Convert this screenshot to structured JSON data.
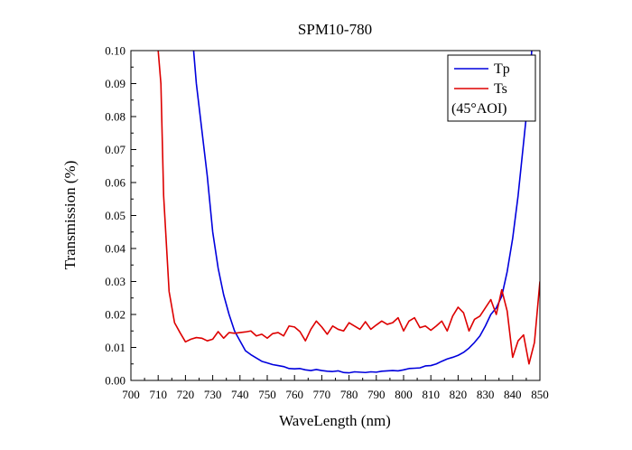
{
  "chart_data": {
    "type": "line",
    "title": "SPM10-780",
    "xlabel": "WaveLength (nm)",
    "ylabel": "Transmission (%)",
    "xlim": [
      700,
      850
    ],
    "ylim": [
      0,
      0.1
    ],
    "x_ticks": [
      "700",
      "710",
      "720",
      "730",
      "740",
      "750",
      "760",
      "770",
      "780",
      "790",
      "800",
      "810",
      "820",
      "830",
      "840",
      "850"
    ],
    "y_ticks": [
      "0.00",
      "0.01",
      "0.02",
      "0.03",
      "0.04",
      "0.05",
      "0.06",
      "0.07",
      "0.08",
      "0.09",
      "0.10"
    ],
    "grid": false,
    "legend_position": "top-right",
    "legend_note": "(45°AOI)",
    "series": [
      {
        "name": "Tp",
        "color": "#0000dd",
        "points": [
          [
            723,
            0.1
          ],
          [
            724,
            0.09
          ],
          [
            726,
            0.076
          ],
          [
            728,
            0.062
          ],
          [
            730,
            0.045
          ],
          [
            732,
            0.034
          ],
          [
            734,
            0.026
          ],
          [
            736,
            0.02
          ],
          [
            738,
            0.015
          ],
          [
            740,
            0.012
          ],
          [
            742,
            0.009
          ],
          [
            744,
            0.0078
          ],
          [
            746,
            0.0068
          ],
          [
            748,
            0.0058
          ],
          [
            750,
            0.0053
          ],
          [
            752,
            0.0048
          ],
          [
            754,
            0.0045
          ],
          [
            756,
            0.0042
          ],
          [
            758,
            0.0036
          ],
          [
            760,
            0.0035
          ],
          [
            762,
            0.0036
          ],
          [
            764,
            0.0032
          ],
          [
            766,
            0.003
          ],
          [
            768,
            0.0033
          ],
          [
            770,
            0.003
          ],
          [
            772,
            0.0028
          ],
          [
            774,
            0.0027
          ],
          [
            776,
            0.0029
          ],
          [
            778,
            0.0024
          ],
          [
            780,
            0.0023
          ],
          [
            782,
            0.0026
          ],
          [
            784,
            0.0025
          ],
          [
            786,
            0.0024
          ],
          [
            788,
            0.0026
          ],
          [
            790,
            0.0025
          ],
          [
            792,
            0.0028
          ],
          [
            794,
            0.0029
          ],
          [
            796,
            0.003
          ],
          [
            798,
            0.0029
          ],
          [
            800,
            0.0032
          ],
          [
            802,
            0.0036
          ],
          [
            804,
            0.0037
          ],
          [
            806,
            0.0038
          ],
          [
            808,
            0.0044
          ],
          [
            810,
            0.0045
          ],
          [
            812,
            0.005
          ],
          [
            814,
            0.0058
          ],
          [
            816,
            0.0065
          ],
          [
            818,
            0.007
          ],
          [
            820,
            0.0076
          ],
          [
            822,
            0.0085
          ],
          [
            824,
            0.0098
          ],
          [
            826,
            0.0115
          ],
          [
            828,
            0.0135
          ],
          [
            830,
            0.0165
          ],
          [
            832,
            0.02
          ],
          [
            834,
            0.022
          ],
          [
            836,
            0.0255
          ],
          [
            838,
            0.033
          ],
          [
            840,
            0.043
          ],
          [
            842,
            0.056
          ],
          [
            844,
            0.072
          ],
          [
            846,
            0.088
          ],
          [
            847,
            0.1
          ]
        ]
      },
      {
        "name": "Ts",
        "color": "#dd0000",
        "points": [
          [
            710,
            0.1
          ],
          [
            711,
            0.09
          ],
          [
            712,
            0.056
          ],
          [
            714,
            0.027
          ],
          [
            716,
            0.0175
          ],
          [
            718,
            0.0145
          ],
          [
            720,
            0.0117
          ],
          [
            722,
            0.0125
          ],
          [
            724,
            0.013
          ],
          [
            726,
            0.0128
          ],
          [
            728,
            0.012
          ],
          [
            730,
            0.0125
          ],
          [
            732,
            0.0148
          ],
          [
            734,
            0.0128
          ],
          [
            736,
            0.0145
          ],
          [
            738,
            0.0143
          ],
          [
            740,
            0.0145
          ],
          [
            742,
            0.0147
          ],
          [
            744,
            0.015
          ],
          [
            746,
            0.0135
          ],
          [
            748,
            0.014
          ],
          [
            750,
            0.0128
          ],
          [
            752,
            0.0142
          ],
          [
            754,
            0.0145
          ],
          [
            756,
            0.0135
          ],
          [
            758,
            0.0165
          ],
          [
            760,
            0.0162
          ],
          [
            762,
            0.0148
          ],
          [
            764,
            0.012
          ],
          [
            766,
            0.0155
          ],
          [
            768,
            0.018
          ],
          [
            770,
            0.0162
          ],
          [
            772,
            0.014
          ],
          [
            774,
            0.0165
          ],
          [
            776,
            0.0155
          ],
          [
            778,
            0.015
          ],
          [
            780,
            0.0175
          ],
          [
            782,
            0.0165
          ],
          [
            784,
            0.0155
          ],
          [
            786,
            0.0178
          ],
          [
            788,
            0.0155
          ],
          [
            790,
            0.0168
          ],
          [
            792,
            0.018
          ],
          [
            794,
            0.017
          ],
          [
            796,
            0.0175
          ],
          [
            798,
            0.019
          ],
          [
            800,
            0.015
          ],
          [
            802,
            0.018
          ],
          [
            804,
            0.019
          ],
          [
            806,
            0.016
          ],
          [
            808,
            0.0165
          ],
          [
            810,
            0.0152
          ],
          [
            812,
            0.0165
          ],
          [
            814,
            0.018
          ],
          [
            816,
            0.015
          ],
          [
            818,
            0.0195
          ],
          [
            820,
            0.0222
          ],
          [
            822,
            0.0205
          ],
          [
            824,
            0.015
          ],
          [
            826,
            0.0185
          ],
          [
            828,
            0.0195
          ],
          [
            830,
            0.022
          ],
          [
            832,
            0.0245
          ],
          [
            834,
            0.02
          ],
          [
            836,
            0.0275
          ],
          [
            838,
            0.021
          ],
          [
            840,
            0.007
          ],
          [
            842,
            0.012
          ],
          [
            844,
            0.0138
          ],
          [
            846,
            0.005
          ],
          [
            848,
            0.0115
          ],
          [
            850,
            0.03
          ]
        ]
      }
    ]
  }
}
